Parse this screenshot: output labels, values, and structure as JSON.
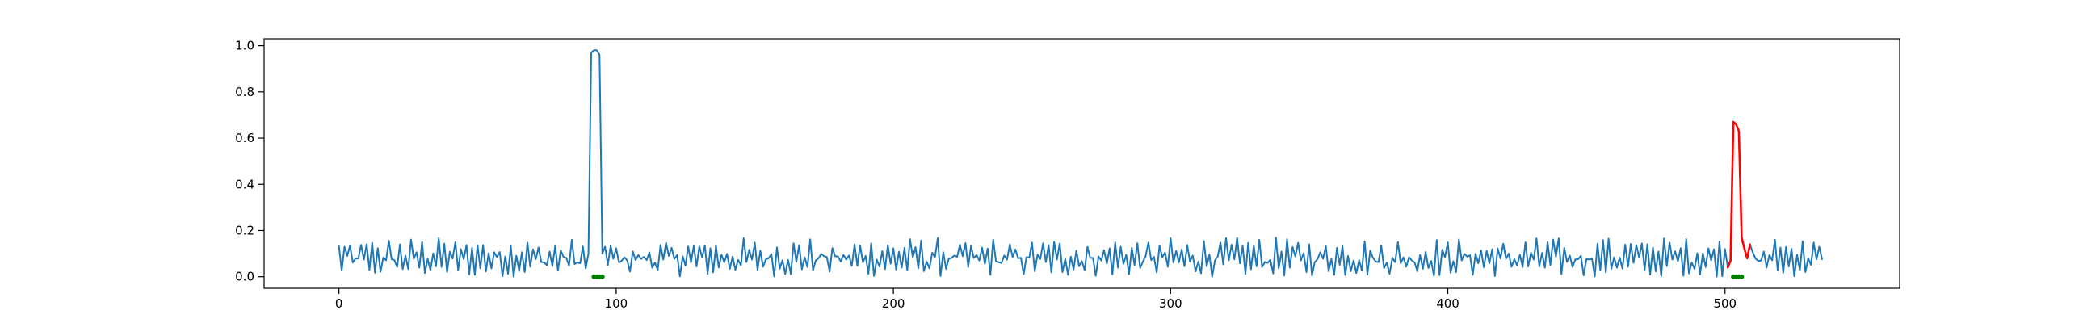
{
  "chart_data": {
    "type": "line",
    "title": "",
    "xlabel": "",
    "ylabel": "",
    "xlim": [
      -27,
      563
    ],
    "ylim": [
      -0.05,
      1.03
    ],
    "xticks": [
      0,
      100,
      200,
      300,
      400,
      500
    ],
    "xtick_labels": [
      "0",
      "100",
      "200",
      "300",
      "400",
      "500"
    ],
    "yticks": [
      0.0,
      0.2,
      0.4,
      0.6,
      0.8,
      1.0
    ],
    "ytick_labels": [
      "0.0",
      "0.2",
      "0.4",
      "0.6",
      "0.8",
      "1.0"
    ],
    "grid": false,
    "series": [
      {
        "role": "signal",
        "color": "#1f77b4",
        "x_start": 0,
        "x_end": 535,
        "baseline_range": [
          0.0,
          0.17
        ],
        "spikes": [
          {
            "x": [
              90,
              91,
              92,
              93,
              94,
              95,
              96
            ],
            "y": [
              0.1,
              0.97,
              0.98,
              0.98,
              0.96,
              0.1,
              0.13
            ]
          },
          {
            "x": [
              500,
              501,
              502,
              503,
              504,
              505,
              506,
              507,
              508,
              509
            ],
            "y": [
              0.12,
              0.04,
              0.07,
              0.67,
              0.66,
              0.63,
              0.17,
              0.12,
              0.08,
              0.14
            ]
          }
        ]
      },
      {
        "role": "anomaly-highlight",
        "color": "#ff0000",
        "x": [
          501,
          502,
          503,
          504,
          505,
          506,
          507,
          508,
          509
        ],
        "y": [
          0.04,
          0.07,
          0.67,
          0.66,
          0.63,
          0.17,
          0.12,
          0.08,
          0.14
        ]
      },
      {
        "role": "label-markers",
        "color": "#008000",
        "x": [
          92,
          93,
          94,
          95,
          503,
          504,
          505,
          506
        ],
        "y": [
          0,
          0,
          0,
          0,
          0,
          0,
          0,
          0
        ]
      }
    ]
  }
}
